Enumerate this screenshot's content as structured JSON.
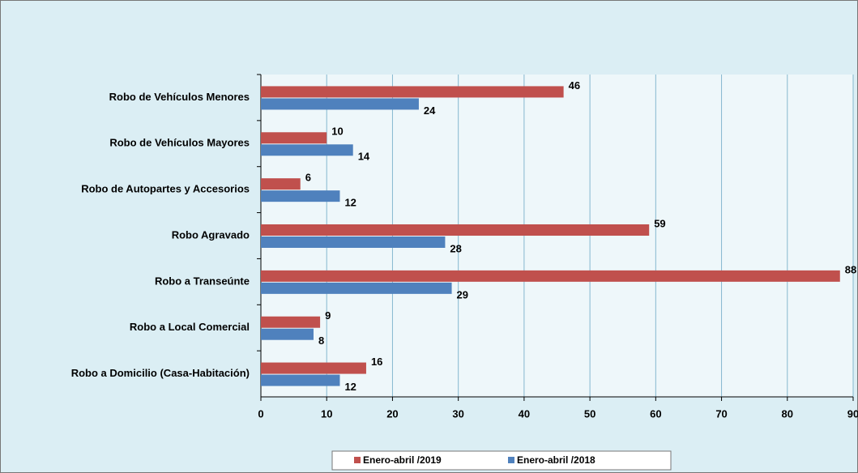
{
  "chart_data": {
    "type": "bar",
    "orientation": "horizontal",
    "categories": [
      "Robo de Vehículos Menores",
      "Robo de Vehículos Mayores",
      "Robo de Autopartes y Accesorios",
      "Robo Agravado",
      "Robo a Transeúnte",
      "Robo a Local Comercial",
      "Robo a Domicilio (Casa-Habitación)"
    ],
    "series": [
      {
        "name": "Enero-abril /2019",
        "color": "#c0504d",
        "values": [
          46,
          10,
          6,
          59,
          88,
          9,
          16
        ]
      },
      {
        "name": "Enero-abril /2018",
        "color": "#4f81bd",
        "values": [
          24,
          14,
          12,
          28,
          29,
          8,
          12
        ]
      }
    ],
    "xlim": [
      0,
      90
    ],
    "xticks": [
      0,
      10,
      20,
      30,
      40,
      50,
      60,
      70,
      80,
      90
    ],
    "grid": true,
    "legend": "bottom"
  }
}
